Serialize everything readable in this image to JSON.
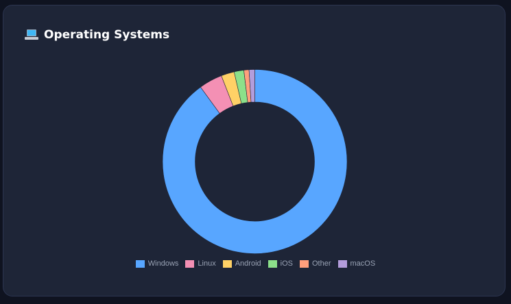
{
  "card": {
    "icon": "laptop-icon",
    "title": "Operating Systems"
  },
  "chart_data": {
    "type": "pie",
    "variant": "doughnut",
    "title": "Operating Systems",
    "categories": [
      "Windows",
      "Linux",
      "Android",
      "iOS",
      "Other",
      "macOS"
    ],
    "values": [
      89.9,
      4.1,
      2.3,
      1.7,
      0.9,
      1.0
    ],
    "colors": [
      "#58a6ff",
      "#f490b4",
      "#ffd166",
      "#8ce08a",
      "#ff9f7c",
      "#b39ddb"
    ],
    "legend_position": "bottom",
    "start_angle": "top",
    "direction": "clockwise"
  }
}
